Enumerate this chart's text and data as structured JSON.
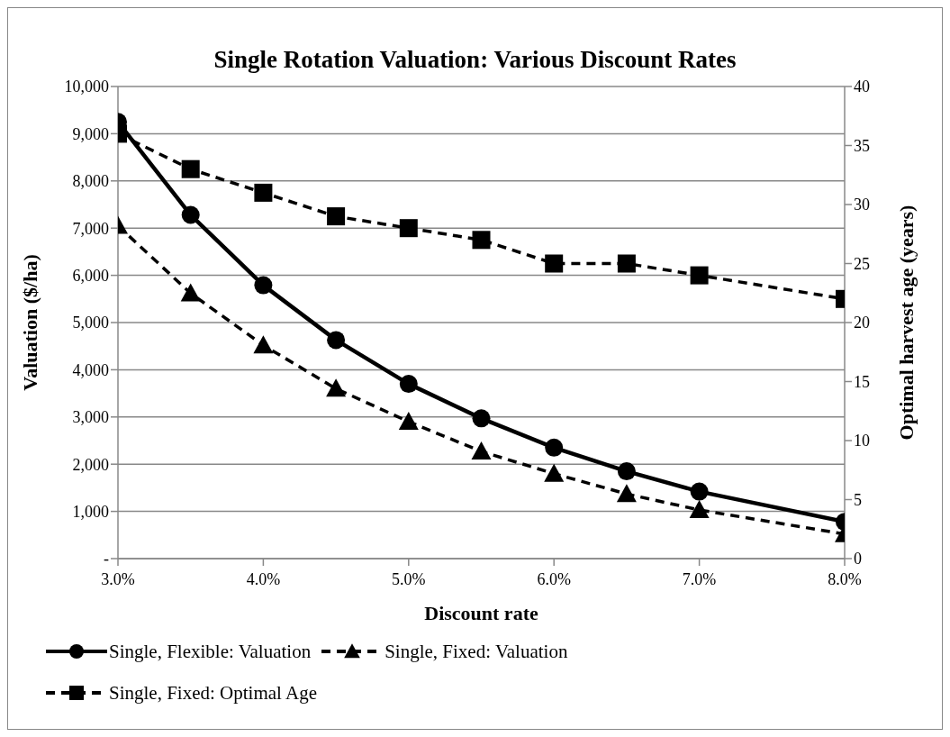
{
  "chart_data": {
    "type": "line",
    "title": "Single Rotation Valuation: Various Discount Rates",
    "xlabel": "Discount rate",
    "ylabel": "Valuation ($/ha)",
    "y2label": "Optimal harvest age (years)",
    "x": [
      3.0,
      3.5,
      4.0,
      4.5,
      5.0,
      5.5,
      6.0,
      6.5,
      7.0,
      7.5,
      8.0
    ],
    "series": [
      {
        "name": "Single, Flexible: Valuation",
        "color": "#000000",
        "marker": "circle",
        "line_style": "solid",
        "values": [
          9250,
          7280,
          5790,
          4630,
          3700,
          2970,
          2350,
          1850,
          1420,
          null,
          780
        ]
      },
      {
        "name": "Single, Fixed: Valuation",
        "color": "#000000",
        "marker": "triangle",
        "line_style": "dashed",
        "values": [
          7050,
          5620,
          4520,
          3600,
          2900,
          2270,
          1800,
          1370,
          1030,
          null,
          520
        ]
      },
      {
        "name": "Single, Fixed: Optimal Age",
        "color": "#000000",
        "marker": "square",
        "line_style": "dashed",
        "axis": "y2",
        "values": [
          36,
          33,
          31,
          29,
          28,
          27,
          25,
          25,
          24,
          null,
          22
        ]
      }
    ],
    "xlim": [
      3.0,
      8.0
    ],
    "xticks": [
      {
        "value": 3.0,
        "label": "3.0%"
      },
      {
        "value": 4.0,
        "label": "4.0%"
      },
      {
        "value": 5.0,
        "label": "5.0%"
      },
      {
        "value": 6.0,
        "label": "6.0%"
      },
      {
        "value": 7.0,
        "label": "7.0%"
      },
      {
        "value": 8.0,
        "label": "8.0%"
      }
    ],
    "ylim": [
      0,
      10000
    ],
    "yticks": [
      {
        "value": 0,
        "label": "-"
      },
      {
        "value": 1000,
        "label": "1,000"
      },
      {
        "value": 2000,
        "label": "2,000"
      },
      {
        "value": 3000,
        "label": "3,000"
      },
      {
        "value": 4000,
        "label": "4,000"
      },
      {
        "value": 5000,
        "label": "5,000"
      },
      {
        "value": 6000,
        "label": "6,000"
      },
      {
        "value": 7000,
        "label": "7,000"
      },
      {
        "value": 8000,
        "label": "8,000"
      },
      {
        "value": 9000,
        "label": "9,000"
      },
      {
        "value": 10000,
        "label": "10,000"
      }
    ],
    "y2lim": [
      0,
      40
    ],
    "y2ticks": [
      0,
      5,
      10,
      15,
      20,
      25,
      30,
      35,
      40
    ],
    "grid": "y",
    "legend": "bottom"
  }
}
